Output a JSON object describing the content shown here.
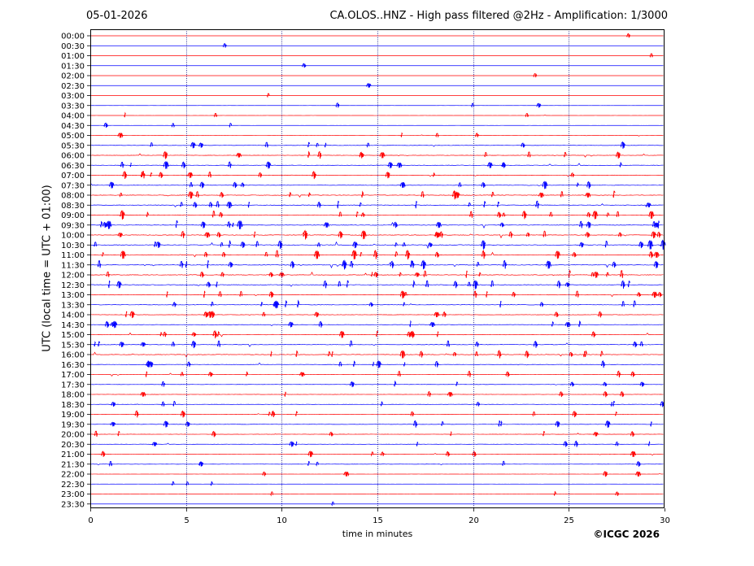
{
  "header": {
    "date": "05-01-2026",
    "title": "CA.OLOS..HNZ - High pass filtered @2Hz - Amplification: 1/3000"
  },
  "copyright": "©ICGC 2026",
  "colors": {
    "even_row": "#ff0000",
    "odd_row": "#0000ff",
    "grid": "#000080",
    "frame": "#000000"
  },
  "chart_data": {
    "type": "line",
    "title": "CA.OLOS..HNZ - High pass filtered @2Hz - Amplification: 1/3000",
    "xlabel": "time in minutes",
    "ylabel": "UTC (local time = UTC + 01:00)",
    "xlim": [
      0,
      30
    ],
    "x_ticks": [
      0,
      5,
      10,
      15,
      20,
      25,
      30
    ],
    "grid_x": true,
    "row_labels": [
      "00:00",
      "00:30",
      "01:00",
      "01:30",
      "02:00",
      "02:30",
      "03:00",
      "03:30",
      "04:00",
      "04:30",
      "05:00",
      "05:30",
      "06:00",
      "06:30",
      "07:00",
      "07:30",
      "08:00",
      "08:30",
      "09:00",
      "09:30",
      "10:00",
      "10:30",
      "11:00",
      "11:30",
      "12:00",
      "12:30",
      "13:00",
      "13:30",
      "14:00",
      "14:30",
      "15:00",
      "15:30",
      "16:00",
      "16:30",
      "17:00",
      "17:30",
      "18:00",
      "18:30",
      "19:00",
      "19:30",
      "20:00",
      "20:30",
      "21:00",
      "21:30",
      "22:00",
      "22:30",
      "23:00",
      "23:30"
    ],
    "row_colors": "alternating red / blue",
    "activity_level": [
      0.04,
      0.04,
      0.03,
      0.05,
      0.03,
      0.03,
      0.04,
      0.15,
      0.12,
      0.12,
      0.18,
      0.45,
      0.5,
      0.55,
      0.6,
      0.55,
      0.7,
      0.7,
      0.75,
      0.8,
      0.8,
      0.85,
      0.8,
      0.8,
      0.75,
      0.75,
      0.65,
      0.6,
      0.5,
      0.45,
      0.55,
      0.6,
      0.65,
      0.5,
      0.45,
      0.3,
      0.3,
      0.35,
      0.45,
      0.45,
      0.35,
      0.35,
      0.3,
      0.3,
      0.2,
      0.12,
      0.12,
      0.05
    ]
  }
}
